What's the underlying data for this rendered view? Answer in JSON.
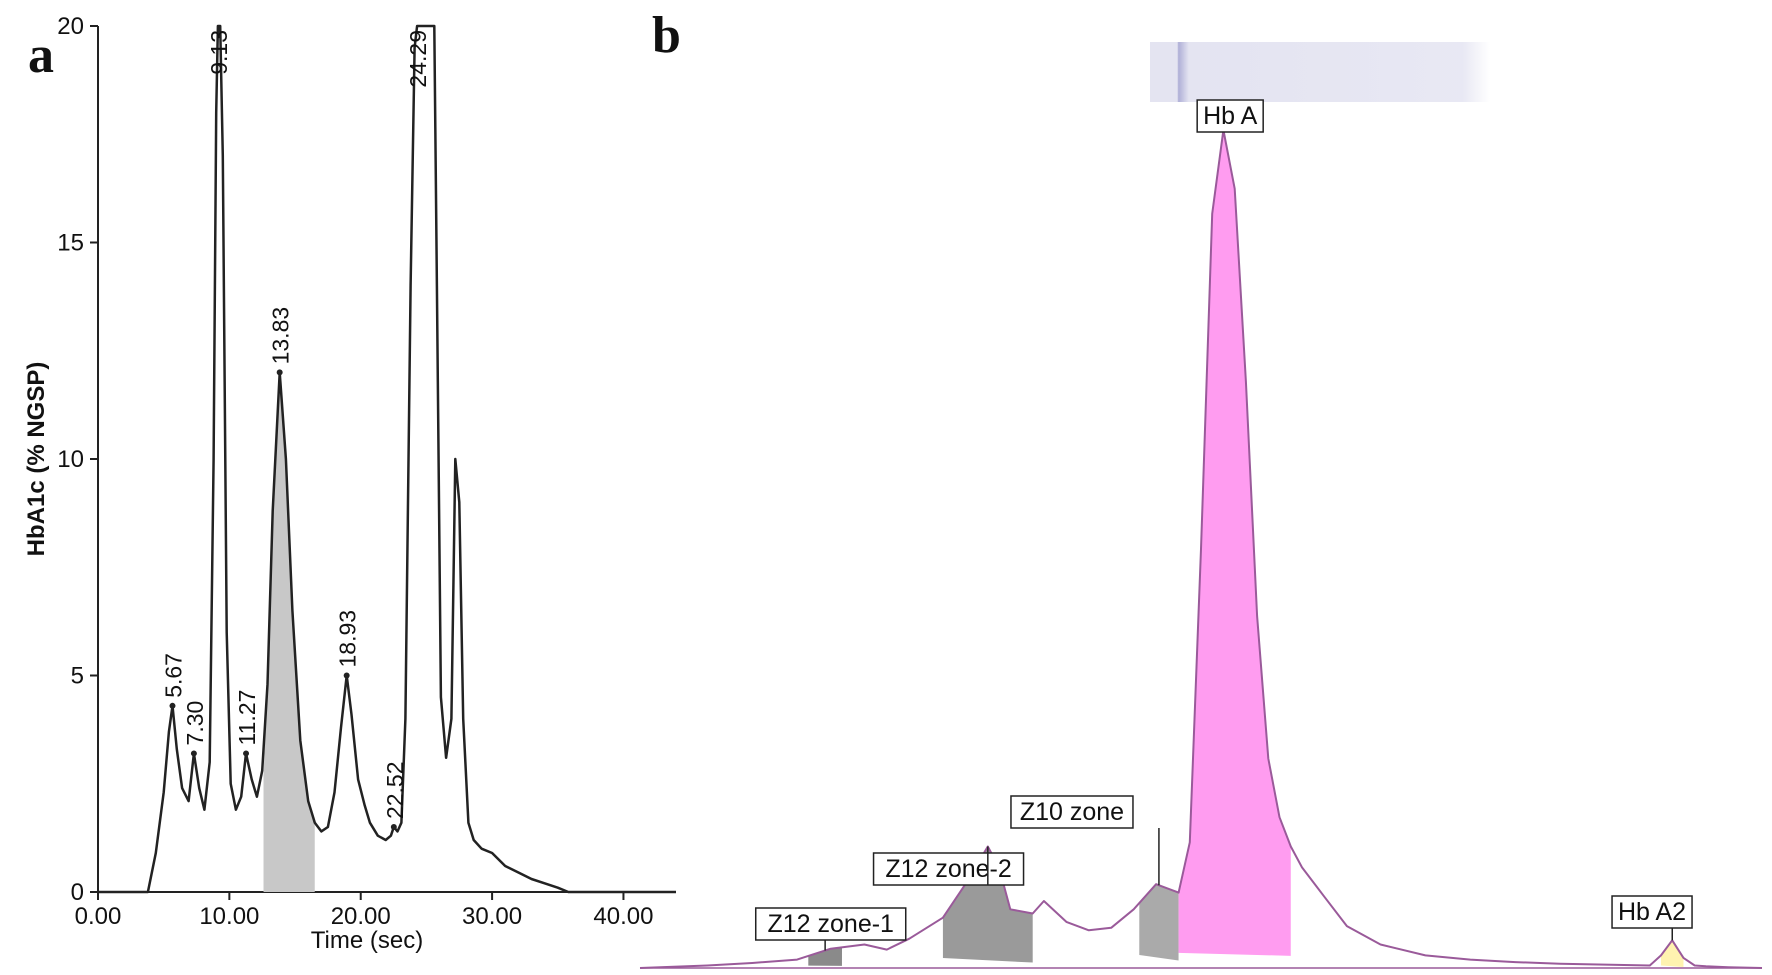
{
  "panels": {
    "a_label": "a",
    "b_label": "b"
  },
  "chart_data": [
    {
      "panel": "a",
      "type": "line",
      "xlabel": "Time (sec)",
      "ylabel": "HbA1c (% NGSP)",
      "xlim": [
        0,
        44
      ],
      "ylim": [
        0,
        20
      ],
      "x_ticks": [
        "0.00",
        "10.00",
        "20.00",
        "30.00",
        "40.00"
      ],
      "x_tick_values": [
        0,
        10,
        20,
        30,
        40
      ],
      "y_ticks": [
        "0",
        "5",
        "10",
        "15",
        "20"
      ],
      "y_tick_values": [
        0,
        5,
        10,
        15,
        20
      ],
      "grid": false,
      "peak_labels": [
        {
          "text": "5.67",
          "x": 5.67,
          "y": 4.3
        },
        {
          "text": "7.30",
          "x": 7.3,
          "y": 3.2
        },
        {
          "text": "9.13",
          "x": 9.13,
          "y": 20
        },
        {
          "text": "11.27",
          "x": 11.27,
          "y": 3.2
        },
        {
          "text": "13.83",
          "x": 13.83,
          "y": 12.0
        },
        {
          "text": "18.93",
          "x": 18.93,
          "y": 5.0
        },
        {
          "text": "22.52",
          "x": 22.52,
          "y": 1.5
        },
        {
          "text": "24.29",
          "x": 24.29,
          "y": 20
        }
      ],
      "series": [
        {
          "color": "#222222",
          "x": [
            0,
            3.8,
            4.4,
            5.0,
            5.4,
            5.67,
            6.0,
            6.4,
            6.9,
            7.3,
            7.7,
            8.1,
            8.5,
            8.8,
            9.0,
            9.13,
            9.3,
            9.5,
            9.8,
            10.1,
            10.5,
            10.9,
            11.27,
            11.7,
            12.1,
            12.5,
            12.9,
            13.3,
            13.83,
            14.3,
            14.8,
            15.4,
            16.0,
            16.5,
            17.0,
            17.5,
            18.0,
            18.5,
            18.93,
            19.3,
            19.8,
            20.3,
            20.7,
            21.3,
            21.9,
            22.3,
            22.52,
            22.8,
            23.1,
            23.4,
            23.8,
            24.1,
            24.29,
            24.6,
            25.0,
            25.3,
            25.6,
            25.8,
            26.1,
            26.5,
            26.9,
            27.2,
            27.5,
            27.8,
            28.2,
            28.6,
            29.2,
            30.0,
            31.0,
            32.0,
            33.0,
            34.0,
            35.0,
            35.8,
            44
          ],
          "y": [
            0,
            0,
            0.9,
            2.3,
            3.7,
            4.3,
            3.3,
            2.4,
            2.1,
            3.2,
            2.4,
            1.9,
            3.0,
            10.0,
            18.0,
            20.0,
            20.0,
            17.0,
            6.0,
            2.5,
            1.9,
            2.2,
            3.2,
            2.6,
            2.2,
            2.8,
            4.8,
            8.8,
            12.0,
            10.0,
            6.5,
            3.5,
            2.1,
            1.6,
            1.4,
            1.5,
            2.3,
            3.8,
            5.0,
            4.1,
            2.6,
            2.0,
            1.6,
            1.3,
            1.2,
            1.3,
            1.5,
            1.4,
            1.6,
            4.0,
            14.0,
            19.5,
            20.0,
            20.0,
            20.0,
            20.0,
            20.0,
            14.0,
            4.5,
            3.1,
            4.0,
            10.0,
            9.0,
            4.0,
            1.6,
            1.2,
            1.0,
            0.9,
            0.6,
            0.45,
            0.3,
            0.2,
            0.1,
            0,
            0
          ]
        }
      ],
      "shaded_region": {
        "color": "#c8c8c8",
        "x": [
          12.6,
          12.9,
          13.3,
          13.83,
          14.3,
          14.8,
          15.4,
          16.0,
          16.5
        ],
        "y": [
          2.7,
          4.8,
          8.8,
          12.0,
          10.0,
          6.5,
          3.5,
          2.1,
          1.6
        ]
      }
    },
    {
      "panel": "b",
      "type": "area",
      "xlabel": "",
      "ylabel": "",
      "xlim": [
        0,
        100
      ],
      "ylim": [
        0,
        100
      ],
      "grid": false,
      "band_strip": {
        "description_free": true,
        "bands": [
          {
            "x": 30.5,
            "strength": 0.55
          },
          {
            "x": 33.0,
            "strength": 0.95
          },
          {
            "x": 40.5,
            "strength": 0.15
          },
          {
            "x": 44.0,
            "strength": 0.25
          },
          {
            "x": 48.0,
            "strength": 0.35
          }
        ]
      },
      "series": [
        {
          "color": "#9a5a9a",
          "x": [
            0,
            6,
            10,
            14,
            17,
            20,
            22,
            24,
            27,
            29,
            31,
            32,
            33,
            35,
            36,
            38,
            40,
            42,
            44,
            46,
            48,
            49,
            50,
            51,
            52,
            53,
            54,
            55,
            56,
            57,
            58,
            59,
            61,
            63,
            66,
            70,
            74,
            78,
            82,
            86,
            90,
            91,
            92,
            93,
            94,
            95,
            97,
            100
          ],
          "y": [
            0,
            0.3,
            0.6,
            1.0,
            2.3,
            2.8,
            2.2,
            3.5,
            6.0,
            10.0,
            14.5,
            12.0,
            7.0,
            6.5,
            8.0,
            5.5,
            4.5,
            4.8,
            7.0,
            10.0,
            9.0,
            15.0,
            50.0,
            90.0,
            100.0,
            93.0,
            70.0,
            42.0,
            25.0,
            18.0,
            14.5,
            12.0,
            8.5,
            5.0,
            2.8,
            1.5,
            1.0,
            0.7,
            0.5,
            0.4,
            0.3,
            1.5,
            3.3,
            1.2,
            0.3,
            0.2,
            0.1,
            0
          ]
        }
      ],
      "zones": [
        {
          "label": "Z12 zone-1",
          "color": "#8a8a8a",
          "x_start": 15,
          "x_end": 18
        },
        {
          "label": "Z12 zone-2",
          "color": "#9a9a9a",
          "x_start": 27,
          "x_end": 35
        },
        {
          "label": "Z10 zone",
          "color": "#aaaaaa",
          "x_start": 44.5,
          "x_end": 48
        },
        {
          "label": "Hb A",
          "color": "#ff9cf0",
          "x_start": 48,
          "x_end": 58
        },
        {
          "label": "Hb A2",
          "color": "#fff3b0",
          "x_start": 91,
          "x_end": 93
        }
      ]
    }
  ]
}
